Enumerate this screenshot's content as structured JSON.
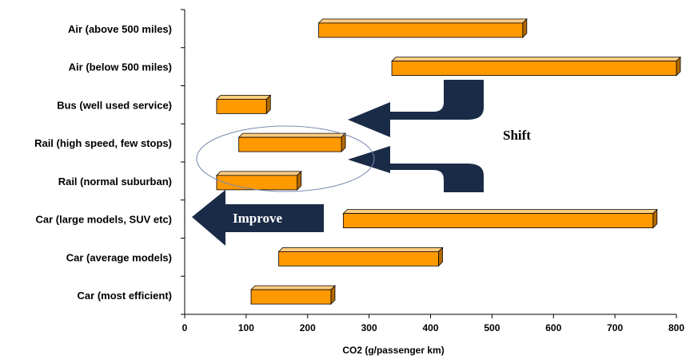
{
  "chart_data": {
    "type": "bar",
    "orientation": "horizontal",
    "subtype": "floating-range",
    "title": "",
    "xlabel": "CO2 (g/passenger km)",
    "ylabel": "",
    "xlim": [
      0,
      800
    ],
    "xticks": [
      0,
      100,
      200,
      300,
      400,
      500,
      600,
      700,
      800
    ],
    "grid": false,
    "categories": [
      "Air (above 500 miles)",
      "Air (below 500 miles)",
      "Bus (well used service)",
      "Rail (high speed, few stops)",
      "Rail (normal suburban)",
      "Car (large models, SUV etc)",
      "Car (average models)",
      "Car (most efficient)"
    ],
    "ranges": [
      [
        218,
        550
      ],
      [
        337,
        800
      ],
      [
        52,
        133
      ],
      [
        88,
        255
      ],
      [
        52,
        183
      ],
      [
        258,
        762
      ],
      [
        153,
        413
      ],
      [
        108,
        238
      ]
    ],
    "annotations": {
      "improve": "Improve",
      "shift": "Shift"
    }
  },
  "colors": {
    "bar_face": "#FF9900",
    "bar_top": "#FFCC80",
    "bar_side": "#B36B00",
    "arrow": "#1A2B47",
    "axis": "#000000"
  }
}
